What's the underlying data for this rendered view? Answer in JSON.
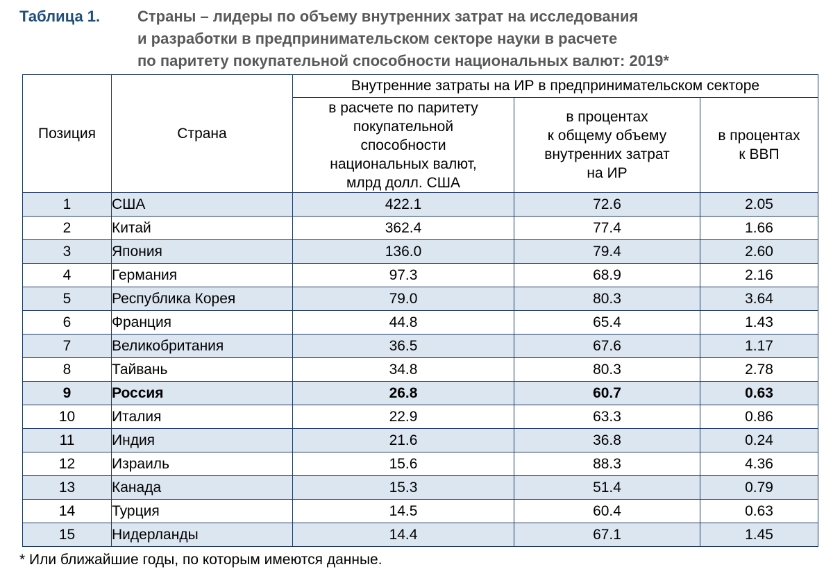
{
  "caption": {
    "label": "Таблица 1.",
    "title_lines": [
      "Страны – лидеры по объему внутренних затрат на исследования",
      "и разработки в предпринимательском секторе науки в расчете",
      "по паритету покупательной способности национальных валют: 2019*"
    ]
  },
  "table": {
    "header": {
      "position": "Позиция",
      "country": "Страна",
      "group": "Внутренние затраты на ИР в предпринимательском секторе",
      "col_ppp_lines": [
        "в расчете по паритету",
        "покупательной",
        "способности",
        "национальных валют,",
        "млрд долл. США"
      ],
      "col_share_lines": [
        "в процентах",
        "к общему объему",
        "внутренних затрат",
        "на ИР"
      ],
      "col_gdp_lines": [
        "в процентах",
        "к ВВП"
      ]
    },
    "rows": [
      {
        "pos": "1",
        "country": "США",
        "ppp": "422.1",
        "share": "72.6",
        "gdp": "2.05"
      },
      {
        "pos": "2",
        "country": "Китай",
        "ppp": "362.4",
        "share": "77.4",
        "gdp": "1.66"
      },
      {
        "pos": "3",
        "country": "Япония",
        "ppp": "136.0",
        "share": "79.4",
        "gdp": "2.60"
      },
      {
        "pos": "4",
        "country": "Германия",
        "ppp": "97.3",
        "share": "68.9",
        "gdp": "2.16"
      },
      {
        "pos": "5",
        "country": "Республика Корея",
        "ppp": "79.0",
        "share": "80.3",
        "gdp": "3.64"
      },
      {
        "pos": "6",
        "country": "Франция",
        "ppp": "44.8",
        "share": "65.4",
        "gdp": "1.43"
      },
      {
        "pos": "7",
        "country": "Великобритания",
        "ppp": "36.5",
        "share": "67.6",
        "gdp": "1.17"
      },
      {
        "pos": "8",
        "country": "Тайвань",
        "ppp": "34.8",
        "share": "80.3",
        "gdp": "2.78"
      },
      {
        "pos": "9",
        "country": "Россия",
        "ppp": "26.8",
        "share": "60.7",
        "gdp": "0.63"
      },
      {
        "pos": "10",
        "country": "Италия",
        "ppp": "22.9",
        "share": "63.3",
        "gdp": "0.86"
      },
      {
        "pos": "11",
        "country": "Индия",
        "ppp": "21.6",
        "share": "36.8",
        "gdp": "0.24"
      },
      {
        "pos": "12",
        "country": "Израиль",
        "ppp": "15.6",
        "share": "88.3",
        "gdp": "4.36"
      },
      {
        "pos": "13",
        "country": "Канада",
        "ppp": "15.3",
        "share": "51.4",
        "gdp": "0.79"
      },
      {
        "pos": "14",
        "country": "Турция",
        "ppp": "14.5",
        "share": "60.4",
        "gdp": "0.63"
      },
      {
        "pos": "15",
        "country": "Нидерланды",
        "ppp": "14.4",
        "share": "67.1",
        "gdp": "1.45"
      }
    ],
    "highlight_country": "Россия"
  },
  "footnote": "* Или ближайшие годы, по которым имеются данные.",
  "colors": {
    "label": "#1f4e79",
    "title": "#595959",
    "row_shading": "#dce6f1",
    "border": "#1f3864"
  }
}
